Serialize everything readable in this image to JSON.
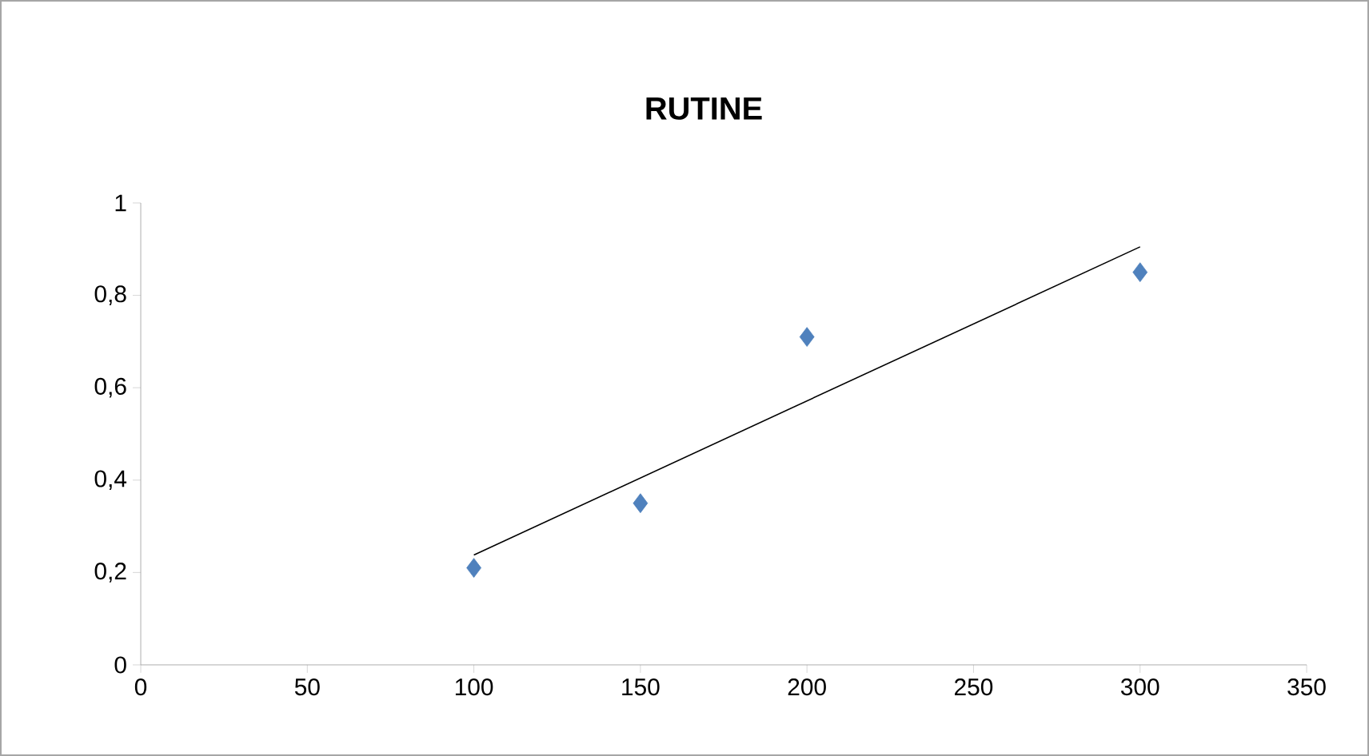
{
  "chart_data": {
    "type": "scatter",
    "title": "RUTINE",
    "series": [
      {
        "color": "#4f81bd",
        "marker": "diamond",
        "x": [
          100,
          150,
          200,
          300
        ],
        "values": [
          0.21,
          0.35,
          0.71,
          0.85
        ]
      },
      {
        "type": "line",
        "color": "#000000",
        "marker": "none",
        "x": [
          100,
          300
        ],
        "values": [
          0.238,
          0.905
        ]
      }
    ],
    "xlim": [
      0,
      350
    ],
    "xticks": [
      0,
      50,
      100,
      150,
      200,
      250,
      300,
      350
    ],
    "ylim": [
      0,
      1
    ],
    "yticks": [
      0,
      {
        "value": 0.2,
        "label": "0,2"
      },
      {
        "value": 0.4,
        "label": "0,4"
      },
      {
        "value": 0.6,
        "label": "0,6"
      },
      {
        "value": 0.8,
        "label": "0,8"
      },
      1
    ],
    "grid": false
  }
}
